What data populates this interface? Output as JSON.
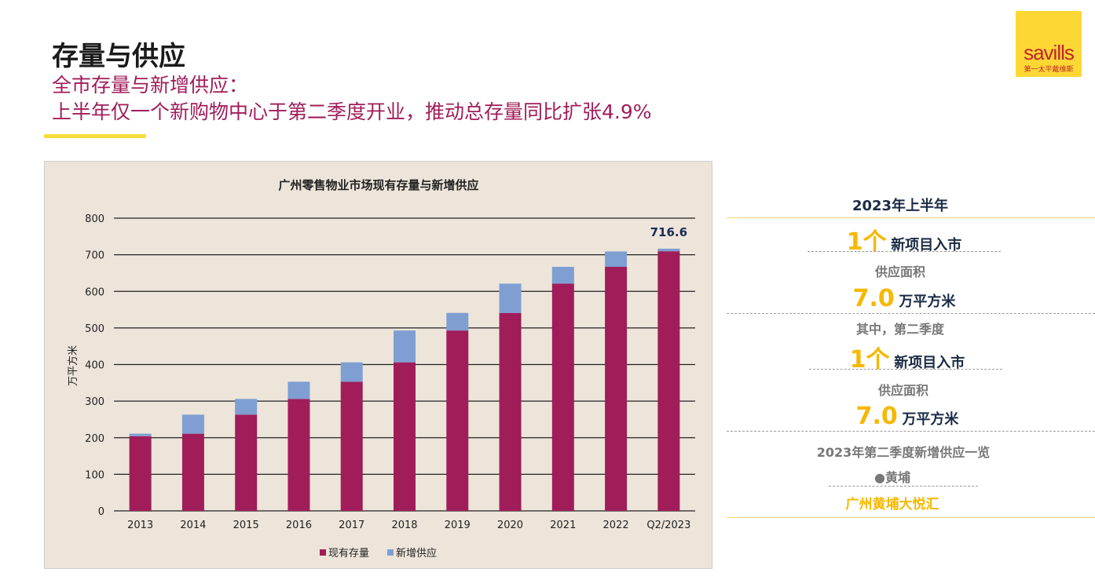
{
  "header": {
    "title": "存量与供应",
    "subtitle_line1": "全市存量与新增供应：",
    "subtitle_line2": "上半年仅一个新购物中心于第二季度开业，推动总存量同比扩张4.9%"
  },
  "logo": {
    "wordmark": "savills",
    "chinese": "第一太平戴维斯"
  },
  "chart_data": {
    "type": "bar",
    "stacked": true,
    "title": "广州零售物业市场现有存量与新增供应",
    "ylabel": "万平方米",
    "xlabel": "",
    "ylim": [
      0,
      800
    ],
    "yticks": [
      0,
      100,
      200,
      300,
      400,
      500,
      600,
      700,
      800
    ],
    "grid": true,
    "legend_position": "bottom",
    "categories": [
      "2013",
      "2014",
      "2015",
      "2016",
      "2017",
      "2018",
      "2019",
      "2020",
      "2021",
      "2022",
      "Q2/2023"
    ],
    "series": [
      {
        "name": "现有存量",
        "color": "#a01d5a",
        "values": [
          204,
          211,
          263,
          306,
          353,
          406,
          493,
          541,
          621,
          667,
          709.6
        ]
      },
      {
        "name": "新增供应",
        "color": "#7f9fd2",
        "values": [
          7,
          52,
          43,
          47,
          53,
          87,
          48,
          80,
          46,
          42,
          7.0
        ]
      }
    ],
    "annotation": "716.6"
  },
  "panel": {
    "period": "2023年上半年",
    "count1": "1个",
    "count1_label": "新项目入市",
    "area_label1": "供应面积",
    "area1": "7.0",
    "area_unit1": "万平方米",
    "q2_label": "其中，第二季度",
    "count2": "1个",
    "count2_label": "新项目入市",
    "area_label2": "供应面积",
    "area2": "7.0",
    "area_unit2": "万平方米",
    "list_title": "2023年第二季度新增供应一览",
    "district": "黄埔",
    "project": "广州黄埔大悦汇",
    "pin_icon": "map-pin-icon"
  }
}
